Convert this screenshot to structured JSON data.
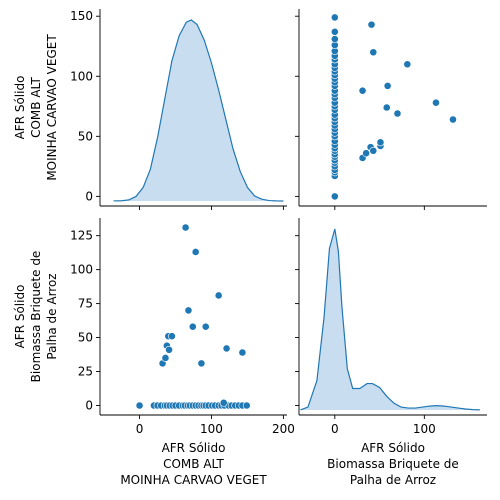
{
  "chart_data": {
    "type": "scatter",
    "title": "",
    "grid": false,
    "colors": {
      "series": "#1f77b4",
      "kde_fill": "#c6dbef",
      "point_edge": "#ffffff",
      "axis": "#000000",
      "background": "#ffffff"
    },
    "variables": [
      {
        "name": "AFR Sólido\nCOMB ALT\nMOINHA CARVAO VEGET",
        "label_lines": [
          "AFR Sólido",
          "COMB ALT",
          "MOINHA CARVAO VEGET"
        ]
      },
      {
        "name": "AFR Sólido\nBiomassa Briquete de\nPalha de Arroz",
        "label_lines": [
          "AFR Sólido",
          "Biomassa Briquete de",
          "Palha de Arroz"
        ]
      }
    ],
    "panels": [
      {
        "row": 0,
        "col": 0,
        "type": "kde",
        "variable": 0,
        "x": [
          -35,
          -25,
          -15,
          -5,
          5,
          15,
          25,
          35,
          45,
          55,
          65,
          72,
          80,
          90,
          100,
          110,
          120,
          130,
          140,
          150,
          160,
          170,
          180,
          190,
          200
        ],
        "density": [
          2e-06,
          1e-05,
          5e-05,
          0.0002,
          0.0006,
          0.0014,
          0.0028,
          0.0045,
          0.0062,
          0.0073,
          0.0079,
          0.008,
          0.0078,
          0.0071,
          0.0061,
          0.0049,
          0.0036,
          0.0023,
          0.0013,
          0.0006,
          0.00022,
          8e-05,
          2e-05,
          5e-06,
          1e-06
        ],
        "xlim": [
          -55,
          205
        ]
      },
      {
        "row": 1,
        "col": 1,
        "type": "kde",
        "variable": 1,
        "x": [
          -38,
          -30,
          -20,
          -12,
          -6,
          0,
          4,
          8,
          14,
          20,
          28,
          36,
          42,
          50,
          58,
          66,
          74,
          82,
          90,
          98,
          106,
          114,
          122,
          130,
          138,
          146,
          154,
          162
        ],
        "density": [
          2e-05,
          0.0003,
          0.003,
          0.0095,
          0.0165,
          0.0185,
          0.0162,
          0.0105,
          0.0042,
          0.0022,
          0.0022,
          0.0027,
          0.0027,
          0.0023,
          0.0014,
          0.0007,
          0.0003,
          0.0002,
          0.0002,
          0.0003,
          0.0004,
          0.00045,
          0.0004,
          0.0003,
          0.0002,
          0.0001,
          4e-05,
          1e-05
        ],
        "xlim": [
          -40,
          170
        ]
      },
      {
        "row": 0,
        "col": 1,
        "type": "scatter",
        "xvar": 1,
        "yvar": 0,
        "points": [
          [
            0,
            0
          ],
          [
            0,
            17
          ],
          [
            0,
            20
          ],
          [
            0,
            22
          ],
          [
            0,
            25
          ],
          [
            0,
            28
          ],
          [
            0,
            30
          ],
          [
            0,
            33
          ],
          [
            0,
            35
          ],
          [
            0,
            38
          ],
          [
            0,
            40
          ],
          [
            0,
            43
          ],
          [
            0,
            46
          ],
          [
            0,
            50
          ],
          [
            0,
            53
          ],
          [
            0,
            56
          ],
          [
            0,
            59
          ],
          [
            0,
            62
          ],
          [
            0,
            65
          ],
          [
            0,
            68
          ],
          [
            0,
            72
          ],
          [
            0,
            75
          ],
          [
            0,
            78
          ],
          [
            0,
            82
          ],
          [
            0,
            85
          ],
          [
            0,
            88
          ],
          [
            0,
            92
          ],
          [
            0,
            95
          ],
          [
            0,
            98
          ],
          [
            0,
            101
          ],
          [
            0,
            104
          ],
          [
            0,
            107
          ],
          [
            0,
            110
          ],
          [
            0,
            114
          ],
          [
            0,
            117
          ],
          [
            0,
            121
          ],
          [
            0,
            126
          ],
          [
            0,
            131
          ],
          [
            0,
            137
          ],
          [
            0,
            149
          ],
          [
            31,
            32
          ],
          [
            35,
            36
          ],
          [
            40,
            41
          ],
          [
            43,
            38
          ],
          [
            51,
            42
          ],
          [
            51,
            45
          ],
          [
            58,
            74
          ],
          [
            59,
            92
          ],
          [
            70,
            69
          ],
          [
            81,
            110
          ],
          [
            113,
            78
          ],
          [
            132,
            64
          ],
          [
            31,
            88
          ],
          [
            41,
            143
          ],
          [
            43,
            120
          ]
        ],
        "xlim": [
          -40,
          170
        ],
        "ylim": [
          -8,
          156
        ]
      },
      {
        "row": 1,
        "col": 0,
        "type": "scatter",
        "xvar": 0,
        "yvar": 1,
        "points": [
          [
            0,
            0
          ],
          [
            20,
            0
          ],
          [
            25,
            0
          ],
          [
            30,
            0
          ],
          [
            35,
            0
          ],
          [
            38,
            0
          ],
          [
            42,
            0
          ],
          [
            46,
            0
          ],
          [
            50,
            0
          ],
          [
            55,
            0
          ],
          [
            60,
            0
          ],
          [
            63,
            0
          ],
          [
            67,
            0
          ],
          [
            70,
            0
          ],
          [
            74,
            0
          ],
          [
            78,
            0
          ],
          [
            82,
            0
          ],
          [
            86,
            0
          ],
          [
            89,
            0
          ],
          [
            92,
            0
          ],
          [
            96,
            0
          ],
          [
            101,
            0
          ],
          [
            105,
            0
          ],
          [
            110,
            0
          ],
          [
            114,
            0
          ],
          [
            118,
            0
          ],
          [
            124,
            0
          ],
          [
            128,
            0
          ],
          [
            133,
            0
          ],
          [
            138,
            0
          ],
          [
            143,
            0
          ],
          [
            149,
            0
          ],
          [
            117,
            2
          ],
          [
            32,
            31
          ],
          [
            36,
            35
          ],
          [
            38,
            44
          ],
          [
            41,
            41
          ],
          [
            40,
            51
          ],
          [
            45,
            51
          ],
          [
            64,
            131
          ],
          [
            68,
            70
          ],
          [
            74,
            58
          ],
          [
            78,
            113
          ],
          [
            86,
            31
          ],
          [
            92,
            58
          ],
          [
            110,
            81
          ],
          [
            121,
            42
          ],
          [
            143,
            39
          ]
        ],
        "xlim": [
          -55,
          205
        ],
        "ylim": [
          -7,
          138
        ]
      }
    ],
    "axes": {
      "row0_y_ticks": [
        0,
        50,
        100,
        150
      ],
      "row1_y_ticks": [
        0,
        25,
        50,
        75,
        100,
        125
      ],
      "col0_x_ticks": [
        0,
        100,
        200
      ],
      "col1_x_ticks": [
        0,
        100
      ],
      "row0_y_tick_labels": [
        "0",
        "50",
        "100",
        "150"
      ],
      "row1_y_tick_labels": [
        "0",
        "25",
        "50",
        "75",
        "100",
        "125"
      ],
      "col0_x_tick_labels": [
        "0",
        "100",
        "200"
      ],
      "col1_x_tick_labels": [
        "0",
        "100"
      ]
    },
    "xlabel": "",
    "ylabel": ""
  }
}
